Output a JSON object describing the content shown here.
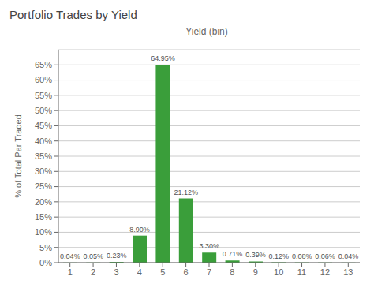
{
  "chart_data": {
    "type": "bar",
    "title": "Portfolio Trades by Yield",
    "xlabel": "Yield (bin)",
    "ylabel": "% of Total Par Traded",
    "categories": [
      1,
      2,
      3,
      4,
      5,
      6,
      7,
      8,
      9,
      10,
      11,
      12,
      13
    ],
    "values": [
      0.04,
      0.05,
      0.23,
      8.9,
      64.95,
      21.12,
      3.3,
      0.71,
      0.39,
      0.12,
      0.08,
      0.06,
      0.04
    ],
    "value_labels": [
      "0.04%",
      "0.05%",
      "0.23%",
      "8.90%",
      "64.95%",
      "21.12%",
      "3.30%",
      "0.71%",
      "0.39%",
      "0.12%",
      "0.08%",
      "0.06%",
      "0.04%"
    ],
    "data_labels": true,
    "color": "#3a9e3a",
    "ylim": [
      0,
      70
    ],
    "yticks": [
      {
        "value": 0,
        "label": "0%"
      },
      {
        "value": 5,
        "label": "5%"
      },
      {
        "value": 10,
        "label": "10%"
      },
      {
        "value": 15,
        "label": "15%"
      },
      {
        "value": 20,
        "label": "20%"
      },
      {
        "value": 25,
        "label": "25%"
      },
      {
        "value": 30,
        "label": "30%"
      },
      {
        "value": 35,
        "label": "35%"
      },
      {
        "value": 40,
        "label": "40%"
      },
      {
        "value": 45,
        "label": "45%"
      },
      {
        "value": 50,
        "label": "50%"
      },
      {
        "value": 55,
        "label": "55%"
      },
      {
        "value": 60,
        "label": "60%"
      },
      {
        "value": 65,
        "label": "65%"
      }
    ],
    "grid": true
  }
}
